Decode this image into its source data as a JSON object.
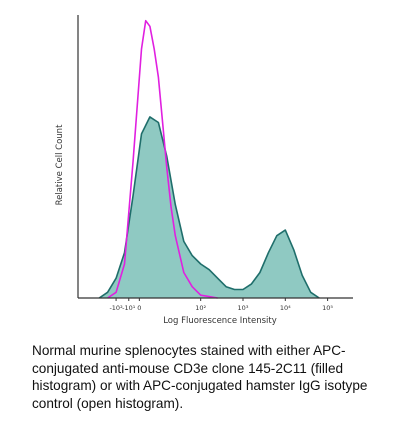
{
  "chart_data": {
    "type": "area",
    "xlabel": "Log Fluorescence Intensity",
    "ylabel": "Relative Cell Count",
    "x_scale": "log",
    "x_ticks": [
      {
        "label": "-10²",
        "value": -2.0
      },
      {
        "label": "-10¹",
        "value": -1.7
      },
      {
        "label": "0",
        "value": -1.45
      },
      {
        "label": "10²",
        "value": 0
      },
      {
        "label": "10³",
        "value": 1
      },
      {
        "label": "10⁴",
        "value": 2
      },
      {
        "label": "10⁵",
        "value": 3
      }
    ],
    "xlim": [
      -2.9,
      3.6
    ],
    "ylim": [
      0,
      1.0
    ],
    "grid": false,
    "legend": "none",
    "series": [
      {
        "label": "filled histogram",
        "fill": "#8fc9c2",
        "stroke": "#1f6e6b",
        "x": [
          -2.4,
          -2.2,
          -2.0,
          -1.8,
          -1.6,
          -1.4,
          -1.2,
          -1.0,
          -0.8,
          -0.6,
          -0.4,
          -0.2,
          0.0,
          0.2,
          0.4,
          0.6,
          0.8,
          1.0,
          1.2,
          1.4,
          1.6,
          1.8,
          2.0,
          2.2,
          2.4,
          2.6,
          2.8
        ],
        "values": [
          0.0,
          0.02,
          0.07,
          0.16,
          0.36,
          0.58,
          0.64,
          0.62,
          0.5,
          0.33,
          0.2,
          0.15,
          0.12,
          0.1,
          0.07,
          0.04,
          0.03,
          0.03,
          0.05,
          0.09,
          0.16,
          0.22,
          0.24,
          0.17,
          0.08,
          0.02,
          0.0
        ]
      },
      {
        "label": "open histogram",
        "fill": "none",
        "stroke": "#e020e0",
        "x": [
          -2.2,
          -2.0,
          -1.8,
          -1.6,
          -1.4,
          -1.3,
          -1.2,
          -1.1,
          -1.0,
          -0.9,
          -0.8,
          -0.7,
          -0.6,
          -0.4,
          -0.2,
          0.0,
          0.2,
          0.4
        ],
        "values": [
          0.0,
          0.02,
          0.12,
          0.48,
          0.88,
          0.98,
          0.96,
          0.88,
          0.78,
          0.62,
          0.46,
          0.32,
          0.22,
          0.09,
          0.04,
          0.01,
          0.005,
          0.0
        ]
      }
    ]
  },
  "caption": "Normal murine splenocytes stained with either APC-conjugated anti-mouse CD3e clone 145-2C11 (filled histogram) or with APC-conjugated hamster IgG isotype control (open histogram)."
}
